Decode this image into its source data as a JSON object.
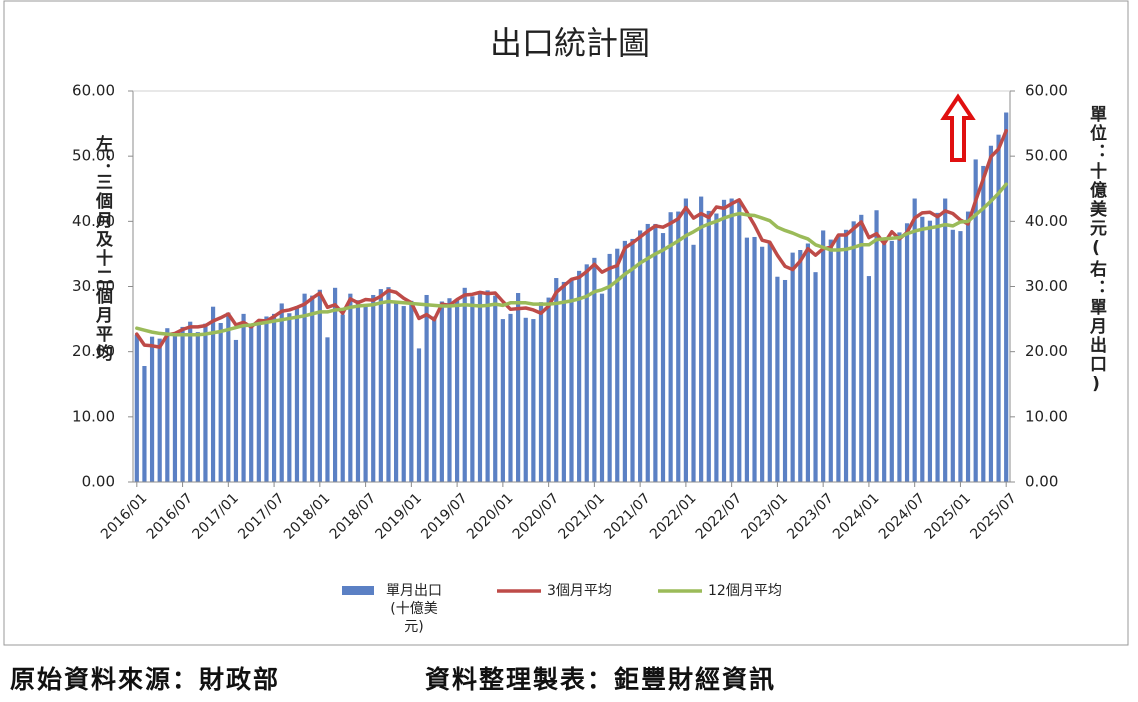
{
  "chart_data": {
    "type": "bar-line",
    "title": "出口統計圖",
    "y_label": "左：三個月及十二個月平均",
    "y2_label": "單位：十億美元(右：單月出口)",
    "source": "原始資料來源：財政部",
    "credit": "資料整理製表：鉅豐財經資訊",
    "categories": [
      "2016/01",
      null,
      null,
      null,
      null,
      null,
      "2016/07",
      null,
      null,
      null,
      null,
      null,
      "2017/01",
      null,
      null,
      null,
      null,
      null,
      "2017/07",
      null,
      null,
      null,
      null,
      null,
      "2018/01",
      null,
      null,
      null,
      null,
      null,
      "2018/07",
      null,
      null,
      null,
      null,
      null,
      "2019/01",
      null,
      null,
      null,
      null,
      null,
      "2019/07",
      null,
      null,
      null,
      null,
      null,
      "2020/01",
      null,
      null,
      null,
      null,
      null,
      "2020/07",
      null,
      null,
      null,
      null,
      null,
      "2021/01",
      null,
      null,
      null,
      null,
      null,
      "2021/07",
      null,
      null,
      null,
      null,
      null,
      "2022/01",
      null,
      null,
      null,
      null,
      null,
      "2022/07",
      null,
      null,
      null,
      null,
      null,
      "2023/01",
      null,
      null,
      null,
      null,
      null,
      "2023/07",
      null,
      null,
      null,
      null,
      null,
      "2024/01",
      null,
      null,
      null,
      null,
      null,
      "2024/07",
      null,
      null,
      null,
      null,
      null,
      "2025/01",
      null,
      null,
      null,
      null,
      null,
      "2025/07"
    ],
    "series": [
      {
        "name": "單月出口(十億美元)",
        "type": "bar",
        "axis": "y2",
        "color": "#5b80c4",
        "values": [
          22.6,
          17.8,
          22.3,
          22.0,
          23.6,
          22.9,
          23.8,
          24.6,
          23.0,
          24.3,
          26.9,
          24.4,
          26.0,
          21.8,
          25.8,
          23.8,
          24.9,
          25.4,
          25.8,
          27.4,
          25.9,
          27.0,
          28.9,
          28.6,
          29.5,
          22.2,
          29.8,
          25.7,
          28.9,
          27.9,
          27.2,
          28.7,
          29.6,
          29.9,
          27.8,
          27.0,
          27.8,
          20.5,
          28.7,
          25.4,
          27.7,
          28.2,
          28.0,
          29.8,
          28.5,
          28.9,
          29.4,
          28.6,
          25.0,
          25.8,
          29.0,
          25.2,
          25.0,
          27.6,
          28.3,
          31.3,
          30.7,
          31.2,
          32.4,
          33.4,
          34.4,
          28.9,
          35.0,
          35.8,
          37.0,
          37.3,
          38.6,
          39.6,
          39.6,
          38.2,
          41.4,
          41.5,
          43.5,
          36.4,
          43.8,
          41.6,
          41.2,
          43.3,
          43.5,
          43.2,
          37.5,
          37.6,
          36.1,
          36.7,
          31.5,
          31.0,
          35.2,
          35.6,
          36.6,
          32.2,
          38.6,
          37.2,
          37.9,
          38.7,
          40.0,
          41.0,
          31.6,
          41.7,
          36.5,
          37.0,
          38.3,
          39.7,
          43.5,
          40.7,
          40.1,
          41.3,
          43.5,
          38.7,
          38.5,
          41.5,
          49.5,
          48.5,
          51.6,
          53.3,
          56.7
        ]
      },
      {
        "name": "3個月平均",
        "type": "line",
        "color": "#be4b48",
        "values": [
          22.7,
          21.0,
          20.9,
          20.7,
          22.6,
          22.8,
          23.4,
          23.8,
          23.8,
          24.0,
          24.7,
          25.2,
          25.8,
          24.1,
          24.5,
          23.8,
          24.8,
          24.7,
          25.4,
          26.2,
          26.4,
          26.8,
          27.3,
          28.2,
          29.0,
          26.8,
          27.2,
          25.9,
          28.1,
          27.5,
          28.0,
          27.9,
          28.5,
          29.4,
          29.1,
          28.2,
          27.5,
          25.1,
          25.7,
          24.9,
          27.3,
          27.1,
          28.0,
          28.7,
          28.8,
          29.1,
          28.9,
          29.0,
          27.7,
          26.5,
          26.6,
          26.7,
          26.4,
          25.9,
          27.0,
          29.1,
          30.1,
          31.1,
          31.4,
          32.3,
          33.4,
          32.2,
          32.8,
          33.2,
          35.9,
          36.7,
          37.6,
          38.5,
          39.3,
          39.1,
          39.7,
          40.4,
          42.1,
          40.5,
          41.2,
          40.6,
          42.2,
          42.0,
          42.7,
          43.3,
          41.4,
          39.4,
          37.1,
          36.8,
          34.8,
          33.1,
          32.6,
          33.9,
          35.8,
          34.8,
          35.8,
          36.0,
          37.9,
          37.9,
          38.9,
          39.9,
          37.5,
          38.1,
          36.6,
          38.4,
          37.3,
          38.3,
          40.5,
          41.3,
          41.4,
          40.7,
          41.6,
          41.2,
          40.2,
          39.6,
          43.2,
          46.5,
          49.9,
          51.1,
          53.9
        ]
      },
      {
        "name": "12個月平均",
        "type": "line",
        "color": "#9bbb59",
        "values": [
          23.6,
          23.3,
          23.0,
          22.8,
          22.7,
          22.6,
          22.6,
          22.6,
          22.6,
          22.7,
          22.9,
          23.1,
          23.4,
          23.7,
          24.0,
          24.1,
          24.3,
          24.5,
          24.7,
          24.9,
          25.1,
          25.3,
          25.5,
          25.8,
          26.1,
          26.1,
          26.4,
          26.5,
          26.8,
          27.0,
          27.1,
          27.2,
          27.5,
          27.7,
          27.6,
          27.5,
          27.4,
          27.3,
          27.2,
          27.1,
          27.0,
          27.0,
          27.1,
          27.2,
          27.1,
          27.0,
          27.1,
          27.3,
          27.1,
          27.5,
          27.5,
          27.5,
          27.3,
          27.3,
          27.3,
          27.4,
          27.6,
          27.8,
          28.1,
          28.5,
          29.2,
          29.5,
          30.0,
          30.9,
          31.9,
          32.7,
          33.6,
          34.3,
          35.0,
          35.6,
          36.3,
          37.0,
          37.8,
          38.4,
          39.1,
          39.6,
          40.0,
          40.5,
          40.9,
          41.2,
          41.0,
          40.9,
          40.5,
          40.1,
          39.1,
          38.6,
          38.2,
          37.7,
          37.3,
          36.4,
          36.0,
          35.6,
          35.6,
          35.7,
          36.0,
          36.4,
          36.4,
          37.2,
          37.3,
          37.4,
          37.5,
          38.1,
          38.5,
          38.8,
          39.0,
          39.2,
          39.5,
          39.3,
          39.9,
          40.0,
          41.0,
          42.0,
          43.1,
          44.3,
          45.7
        ]
      }
    ],
    "ylim": [
      0,
      60
    ],
    "yticks": [
      {
        "value": 0,
        "label": "0.00"
      },
      {
        "value": 10,
        "label": "10.00"
      },
      {
        "value": 20,
        "label": "20.00"
      },
      {
        "value": 30,
        "label": "30.00"
      },
      {
        "value": 40,
        "label": "40.00"
      },
      {
        "value": 50,
        "label": "50.00"
      },
      {
        "value": 60,
        "label": "60.00"
      }
    ],
    "y2lim": [
      0,
      60
    ],
    "y2ticks": [
      {
        "value": 0,
        "label": "0.00"
      },
      {
        "value": 10,
        "label": "10.00"
      },
      {
        "value": 20,
        "label": "20.00"
      },
      {
        "value": 30,
        "label": "30.00"
      },
      {
        "value": 40,
        "label": "40.00"
      },
      {
        "value": 50,
        "label": "50.00"
      },
      {
        "value": 60,
        "label": "60.00"
      }
    ],
    "grid": false,
    "legend": "bottom"
  }
}
